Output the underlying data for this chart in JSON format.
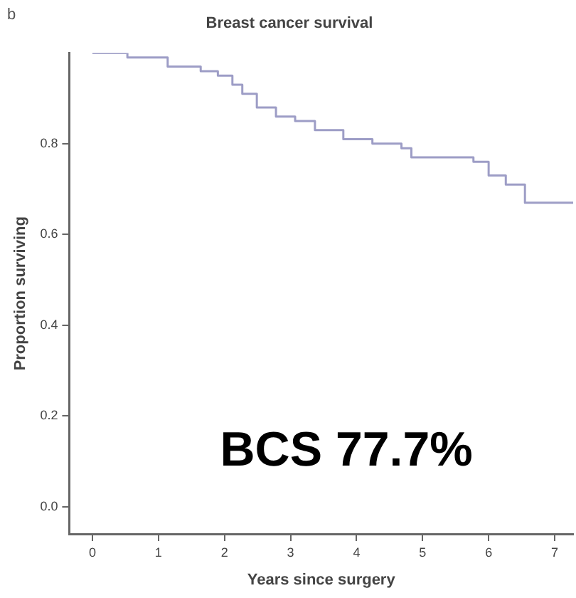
{
  "chart_data": {
    "type": "step",
    "title": "Breast cancer survival",
    "xlabel": "Years since surgery",
    "ylabel": "Proportion surviving",
    "annotations": [
      "b",
      "BCS 77.7%"
    ],
    "x": [
      0,
      0.53,
      0.96,
      1.14,
      1.58,
      1.64,
      1.9,
      2.12,
      2.27,
      2.49,
      2.78,
      3.07,
      3.37,
      3.8,
      4.24,
      4.68,
      4.83,
      5.7,
      5.77,
      6.0,
      6.26,
      6.55,
      7.28
    ],
    "series": [
      {
        "color": "#9d9dc6",
        "values": [
          1.0,
          0.99,
          0.99,
          0.97,
          0.97,
          0.96,
          0.95,
          0.93,
          0.91,
          0.88,
          0.86,
          0.85,
          0.83,
          0.81,
          0.8,
          0.79,
          0.77,
          0.77,
          0.76,
          0.73,
          0.71,
          0.67,
          0.67
        ]
      }
    ],
    "xlim": [
      -0.35,
      7.28
    ],
    "xticks": [
      0,
      1,
      2,
      3,
      4,
      5,
      6,
      7
    ],
    "ylim": [
      -0.06,
      1.0
    ],
    "yticks": [
      {
        "value": 0,
        "label": "0.0"
      },
      {
        "value": 0.2,
        "label": "0.2"
      },
      {
        "value": 0.4,
        "label": "0.4"
      },
      {
        "value": 0.6,
        "label": "0.6"
      },
      {
        "value": 0.8,
        "label": "0.8"
      }
    ],
    "grid": false,
    "legend": false,
    "marker": "none",
    "line_style": "solid"
  }
}
